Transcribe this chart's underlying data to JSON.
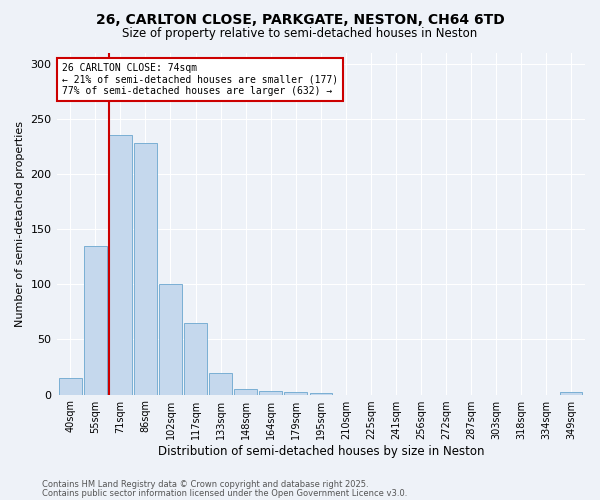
{
  "title_line1": "26, CARLTON CLOSE, PARKGATE, NESTON, CH64 6TD",
  "title_line2": "Size of property relative to semi-detached houses in Neston",
  "xlabel": "Distribution of semi-detached houses by size in Neston",
  "ylabel": "Number of semi-detached properties",
  "categories": [
    "40sqm",
    "55sqm",
    "71sqm",
    "86sqm",
    "102sqm",
    "117sqm",
    "133sqm",
    "148sqm",
    "164sqm",
    "179sqm",
    "195sqm",
    "210sqm",
    "225sqm",
    "241sqm",
    "256sqm",
    "272sqm",
    "287sqm",
    "303sqm",
    "318sqm",
    "334sqm",
    "349sqm"
  ],
  "values": [
    15,
    135,
    235,
    228,
    100,
    65,
    20,
    5,
    3,
    2,
    1,
    0,
    0,
    0,
    0,
    0,
    0,
    0,
    0,
    0,
    2
  ],
  "bar_color": "#c5d8ed",
  "bar_edge_color": "#7aafd4",
  "property_bin_index": 2,
  "annotation_title": "26 CARLTON CLOSE: 74sqm",
  "annotation_line2": "← 21% of semi-detached houses are smaller (177)",
  "annotation_line3": "77% of semi-detached houses are larger (632) →",
  "vline_color": "#cc0000",
  "annotation_box_color": "#ffffff",
  "annotation_box_edge": "#cc0000",
  "ylim": [
    0,
    310
  ],
  "yticks": [
    0,
    50,
    100,
    150,
    200,
    250,
    300
  ],
  "footer_line1": "Contains HM Land Registry data © Crown copyright and database right 2025.",
  "footer_line2": "Contains public sector information licensed under the Open Government Licence v3.0.",
  "bg_color": "#eef2f8",
  "plot_bg_color": "#eef2f8",
  "grid_color": "#ffffff",
  "title_fontsize": 10,
  "subtitle_fontsize": 8.5,
  "ylabel_fontsize": 8,
  "xlabel_fontsize": 8.5,
  "tick_fontsize": 7,
  "annotation_fontsize": 7,
  "footer_fontsize": 6
}
